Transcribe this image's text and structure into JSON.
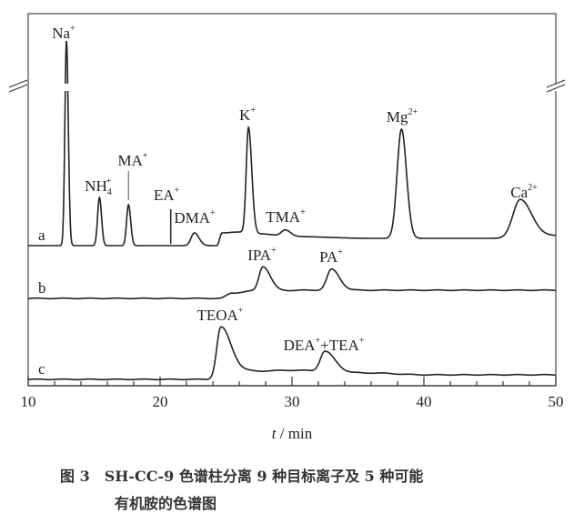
{
  "chart_data": {
    "type": "line",
    "title": "",
    "xlabel_italic": "t",
    "xlabel_rest": " / min",
    "xlim": [
      10,
      50
    ],
    "xticks": [
      10,
      20,
      30,
      40,
      50
    ],
    "minor_tick_step": 2,
    "ylabel": "",
    "y_axis_break": true,
    "series": [
      {
        "name": "a",
        "baseline": [
          [
            10,
            0
          ],
          [
            12.4,
            0
          ],
          [
            24.3,
            0
          ],
          [
            24.7,
            14
          ],
          [
            26,
            15
          ],
          [
            27.5,
            13
          ],
          [
            30,
            10
          ],
          [
            36,
            8
          ],
          [
            46,
            8
          ],
          [
            50,
            11
          ]
        ],
        "peaks": [
          {
            "t": 12.9,
            "h": 225,
            "sl": 0.12,
            "sr": 0.14,
            "label": "Na",
            "charge": "+"
          },
          {
            "t": 15.4,
            "h": 53,
            "sl": 0.14,
            "sr": 0.16,
            "label": "NH",
            "sub": "4",
            "charge": "+"
          },
          {
            "t": 17.6,
            "h": 45,
            "sl": 0.14,
            "sr": 0.17,
            "label": "MA",
            "charge": "+"
          },
          {
            "t": 22.6,
            "h": 14,
            "sl": 0.25,
            "sr": 0.35,
            "label": "DMA",
            "charge": "+"
          },
          {
            "t": 26.7,
            "h": 116,
            "sl": 0.17,
            "sr": 0.25,
            "label": "K",
            "charge": "+"
          },
          {
            "t": 29.5,
            "h": 7,
            "sl": 0.3,
            "sr": 0.4,
            "label": "TMA",
            "charge": "+"
          },
          {
            "t": 38.3,
            "h": 120,
            "sl": 0.33,
            "sr": 0.38,
            "label": "Mg",
            "charge": "2+"
          },
          {
            "t": 47.3,
            "h": 42,
            "sl": 0.55,
            "sr": 0.85,
            "label": "Ca",
            "charge": "2+"
          }
        ],
        "markers": [
          {
            "t": 20.6,
            "label": "EA",
            "charge": "+"
          }
        ]
      },
      {
        "name": "b",
        "baseline": [
          [
            10,
            0
          ],
          [
            24.5,
            0
          ],
          [
            25.5,
            6
          ],
          [
            27,
            8
          ],
          [
            31,
            9
          ],
          [
            50,
            9
          ]
        ],
        "peaks": [
          {
            "t": 27.8,
            "h": 27,
            "sl": 0.3,
            "sr": 0.55,
            "label": "IPA",
            "charge": "+"
          },
          {
            "t": 33.0,
            "h": 23,
            "sl": 0.35,
            "sr": 0.6,
            "label": "PA",
            "charge": "+"
          }
        ]
      },
      {
        "name": "c",
        "baseline": [
          [
            10,
            0
          ],
          [
            23.5,
            0
          ],
          [
            25,
            4
          ],
          [
            27,
            9
          ],
          [
            30,
            10
          ],
          [
            36,
            7
          ],
          [
            40,
            5
          ],
          [
            50,
            5
          ]
        ],
        "peaks": [
          {
            "t": 24.6,
            "h": 54,
            "sl": 0.3,
            "sr": 0.8,
            "label": "TEOA",
            "charge": "+"
          },
          {
            "t": 32.5,
            "h": 22,
            "sl": 0.35,
            "sr": 0.75,
            "label": "DEA",
            "charge": "+",
            "label2": "+TEA",
            "charge2": "+"
          }
        ]
      }
    ]
  },
  "caption": {
    "line1": "图 3　SH-CC-9 色谱柱分离 9 种目标离子及 5 种可能",
    "line2": "有机胺的色谱图"
  }
}
